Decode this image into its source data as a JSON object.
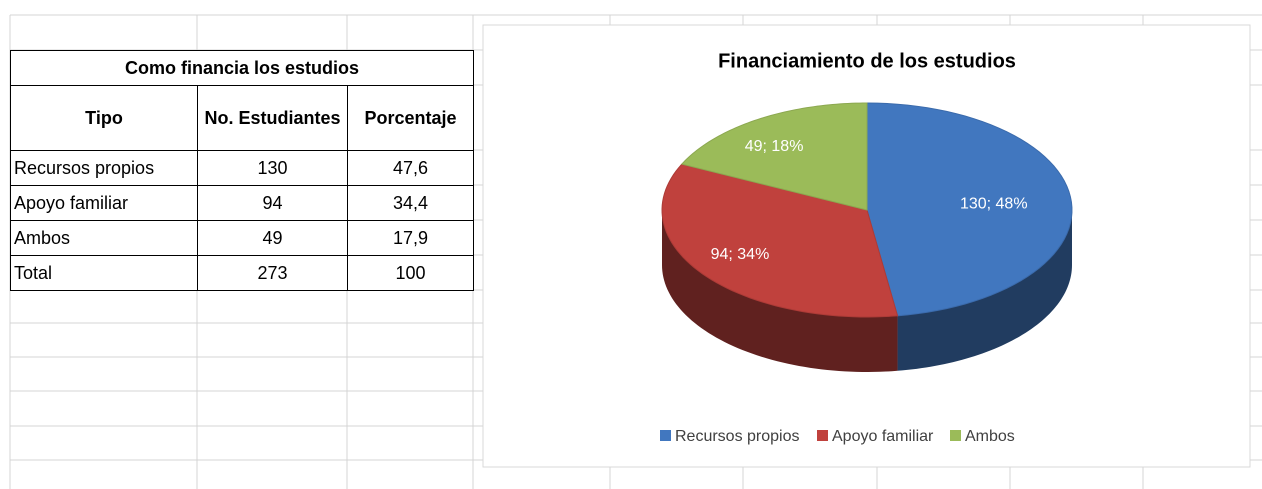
{
  "table": {
    "title": "Como financia los estudios",
    "header": [
      "Tipo",
      "No. Estudiantes",
      "Porcentaje"
    ],
    "rows": [
      [
        "Recursos propios",
        "130",
        "47,6"
      ],
      [
        "Apoyo familiar",
        "94",
        "34,4"
      ],
      [
        "Ambos",
        "49",
        "17,9"
      ],
      [
        "Total",
        "273",
        "100"
      ]
    ]
  },
  "chart_data": {
    "type": "pie",
    "title": "Financiamiento de los estudios",
    "categories": [
      "Recursos propios",
      "Apoyo familiar",
      "Ambos"
    ],
    "values": [
      130,
      94,
      49
    ],
    "value_labels": [
      "130; 48%",
      "94; 34%",
      "49; 18%"
    ],
    "colors": [
      "#4177bf",
      "#c0413d",
      "#9bbb59"
    ],
    "legend": "bottom"
  }
}
